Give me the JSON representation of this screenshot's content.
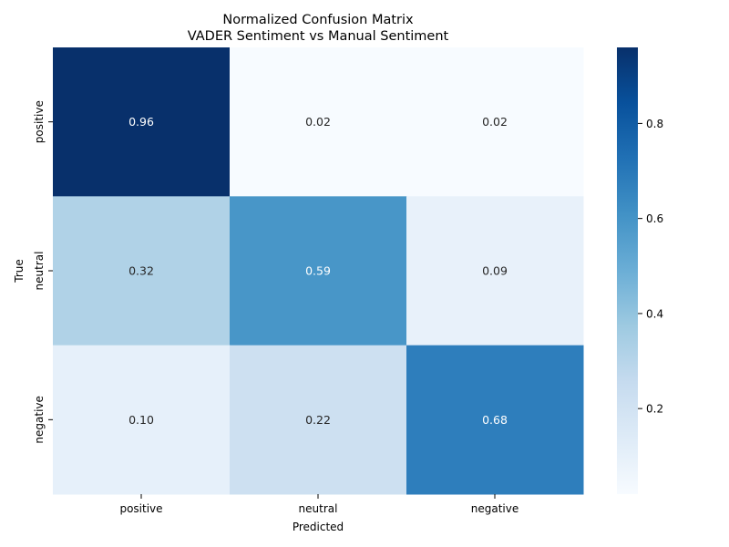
{
  "chart_data": {
    "type": "heatmap",
    "title": "Normalized Confusion Matrix",
    "subtitle": "VADER Sentiment vs Manual Sentiment",
    "xlabel": "Predicted",
    "ylabel": "True",
    "x_categories": [
      "positive",
      "neutral",
      "negative"
    ],
    "y_categories": [
      "positive",
      "neutral",
      "negative"
    ],
    "values": [
      [
        0.96,
        0.02,
        0.02
      ],
      [
        0.32,
        0.59,
        0.09
      ],
      [
        0.1,
        0.22,
        0.68
      ]
    ],
    "value_labels": [
      [
        "0.96",
        "0.02",
        "0.02"
      ],
      [
        "0.32",
        "0.59",
        "0.09"
      ],
      [
        "0.10",
        "0.22",
        "0.68"
      ]
    ],
    "colorbar": {
      "range": [
        0.02,
        0.96
      ],
      "ticks": [
        0.2,
        0.4,
        0.6,
        0.8
      ],
      "tick_labels": [
        "0.2",
        "0.4",
        "0.6",
        "0.8"
      ]
    },
    "colormap": [
      "#f7fbff",
      "#deebf7",
      "#c6dbef",
      "#9ecae1",
      "#6baed6",
      "#4292c6",
      "#2171b5",
      "#08519c",
      "#08306b"
    ]
  }
}
